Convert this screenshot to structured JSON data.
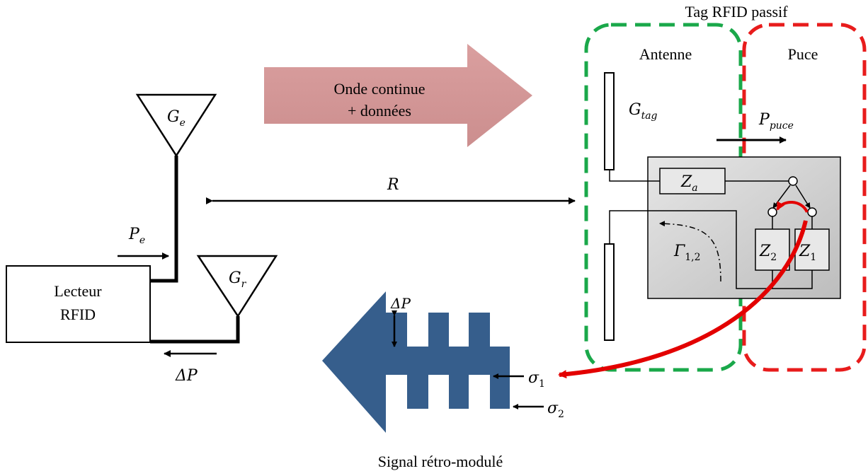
{
  "labels": {
    "tag_title": "Tag RFID passif",
    "antenna": "Antenne",
    "chip": "Puce",
    "wave_line1": "Onde continue",
    "wave_line2": "+ données",
    "reader_line1": "Lecteur",
    "reader_line2": "RFID",
    "signal_caption": "Signal rétro-modulé",
    "distance": "R"
  },
  "math": {
    "ge_base": "G",
    "ge_sub": "e",
    "gr_base": "G",
    "gr_sub": "r",
    "pe_base": "P",
    "pe_sub": "e",
    "gtag_base": "G",
    "gtag_sub": "tag",
    "ppuce_base": "P",
    "ppuce_sub": "puce",
    "za_base": "Z",
    "za_sub": "a",
    "z1_base": "Z",
    "z1_sub": "1",
    "z2_base": "Z",
    "z2_sub": "2",
    "gamma_base": "Γ",
    "gamma_sub": "1,2",
    "sigma1_base": "σ",
    "sigma1_sub": "1",
    "sigma2_base": "σ",
    "sigma2_sub": "2",
    "deltap_reader": "ΔP",
    "deltap_signal": "ΔP"
  },
  "colors": {
    "antenna_box": "#1aa84a",
    "chip_box": "#e81c1c",
    "wave_arrow": "#d89a9a",
    "signal_arrow": "#365e8c",
    "chip_panel": "#cfcfcf",
    "red_arrow": "#e30000"
  }
}
